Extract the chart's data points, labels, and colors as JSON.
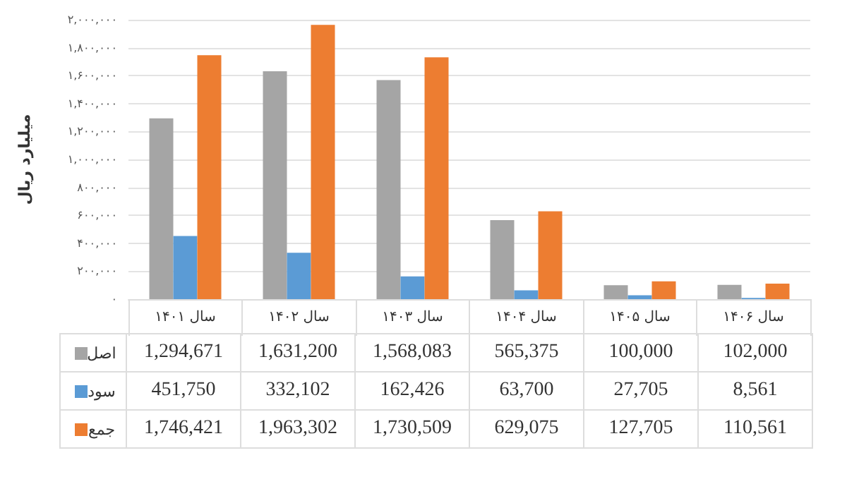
{
  "chart_data": {
    "type": "bar",
    "ylabel": "میلیارد ریال",
    "categories": [
      "سال ۱۴۰۱",
      "سال ۱۴۰۲",
      "سال ۱۴۰۳",
      "سال ۱۴۰۴",
      "سال ۱۴۰۵",
      "سال ۱۴۰۶"
    ],
    "series": [
      {
        "name": "اصل",
        "color": "#a5a5a5",
        "values": [
          1294671,
          1631200,
          1568083,
          565375,
          100000,
          102000
        ],
        "value_labels": [
          "1,294,671",
          "1,631,200",
          "1,568,083",
          "565,375",
          "100,000",
          "102,000"
        ]
      },
      {
        "name": "سود",
        "color": "#5b9bd5",
        "values": [
          451750,
          332102,
          162426,
          63700,
          27705,
          8561
        ],
        "value_labels": [
          "451,750",
          "332,102",
          "162,426",
          "63,700",
          "27,705",
          "8,561"
        ]
      },
      {
        "name": "جمع",
        "color": "#ed7d31",
        "values": [
          1746421,
          1963302,
          1730509,
          629075,
          127705,
          110561
        ],
        "value_labels": [
          "1,746,421",
          "1,963,302",
          "1,730,509",
          "629,075",
          "127,705",
          "110,561"
        ]
      }
    ],
    "ylim": [
      0,
      2000000
    ],
    "yticks": [
      {
        "value": 0,
        "label": "۰"
      },
      {
        "value": 200000,
        "label": "۲۰۰,۰۰۰"
      },
      {
        "value": 400000,
        "label": "۴۰۰,۰۰۰"
      },
      {
        "value": 600000,
        "label": "۶۰۰,۰۰۰"
      },
      {
        "value": 800000,
        "label": "۸۰۰,۰۰۰"
      },
      {
        "value": 1000000,
        "label": "۱,۰۰۰,۰۰۰"
      },
      {
        "value": 1200000,
        "label": "۱,۲۰۰,۰۰۰"
      },
      {
        "value": 1400000,
        "label": "۱,۴۰۰,۰۰۰"
      },
      {
        "value": 1600000,
        "label": "۱,۶۰۰,۰۰۰"
      },
      {
        "value": 1800000,
        "label": "۱,۸۰۰,۰۰۰"
      },
      {
        "value": 2000000,
        "label": "۲,۰۰۰,۰۰۰"
      }
    ],
    "grid": "y",
    "legend": "bottom left"
  }
}
